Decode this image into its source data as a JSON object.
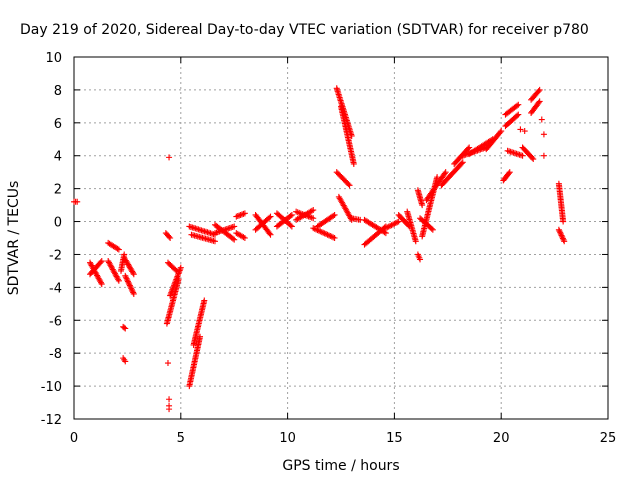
{
  "chart_data": {
    "type": "scatter",
    "title": "Day 219 of 2020, Sidereal Day-to-day VTEC variation (SDTVAR) for receiver p780",
    "xlabel": "GPS time / hours",
    "ylabel": "SDTVAR / TECUs",
    "xlim": [
      0,
      25
    ],
    "ylim": [
      -12,
      10
    ],
    "xticks": [
      0,
      5,
      10,
      15,
      20,
      25
    ],
    "yticks": [
      -12,
      -10,
      -8,
      -6,
      -4,
      -2,
      0,
      2,
      4,
      6,
      8,
      10
    ],
    "grid": true,
    "marker": "plus",
    "color": "#ff0000",
    "segments": [
      {
        "x": [
          0.0,
          0.15
        ],
        "y": [
          1.2,
          1.2
        ]
      },
      {
        "x": [
          0.75,
          1.3
        ],
        "y": [
          -2.5,
          -3.8
        ]
      },
      {
        "x": [
          0.75,
          1.3
        ],
        "y": [
          -3.2,
          -2.4
        ]
      },
      {
        "x": [
          1.6,
          2.1
        ],
        "y": [
          -1.3,
          -1.7
        ]
      },
      {
        "x": [
          1.6,
          2.1
        ],
        "y": [
          -2.4,
          -3.6
        ]
      },
      {
        "x": [
          2.2,
          2.35
        ],
        "y": [
          -3.0,
          -2.0
        ]
      },
      {
        "x": [
          2.35,
          2.8
        ],
        "y": [
          -2.2,
          -3.2
        ]
      },
      {
        "x": [
          2.4,
          2.8
        ],
        "y": [
          -3.3,
          -4.4
        ]
      },
      {
        "x": [
          2.3,
          2.4
        ],
        "y": [
          -6.4,
          -6.5
        ]
      },
      {
        "x": [
          2.3,
          2.4
        ],
        "y": [
          -8.3,
          -8.5
        ]
      },
      {
        "x": [
          4.3,
          4.5
        ],
        "y": [
          -0.7,
          -1.0
        ]
      },
      {
        "x": [
          4.35,
          4.9
        ],
        "y": [
          -6.2,
          -3.5
        ]
      },
      {
        "x": [
          4.5,
          5.0
        ],
        "y": [
          -4.5,
          -2.8
        ]
      },
      {
        "x": [
          4.4,
          4.8
        ],
        "y": [
          -2.5,
          -3.0
        ]
      },
      {
        "x": [
          5.4,
          5.9
        ],
        "y": [
          -10.0,
          -7.0
        ]
      },
      {
        "x": [
          5.6,
          6.1
        ],
        "y": [
          -7.5,
          -4.8
        ]
      },
      {
        "x": [
          5.4,
          6.6
        ],
        "y": [
          -0.3,
          -0.8
        ]
      },
      {
        "x": [
          5.5,
          6.6
        ],
        "y": [
          -0.8,
          -1.2
        ]
      },
      {
        "x": [
          6.6,
          7.5
        ],
        "y": [
          -0.2,
          -1.1
        ]
      },
      {
        "x": [
          6.6,
          7.5
        ],
        "y": [
          -0.7,
          -0.3
        ]
      },
      {
        "x": [
          7.6,
          8.0
        ],
        "y": [
          0.3,
          0.5
        ]
      },
      {
        "x": [
          7.6,
          8.0
        ],
        "y": [
          -0.7,
          -1.0
        ]
      },
      {
        "x": [
          8.5,
          9.2
        ],
        "y": [
          0.4,
          -0.8
        ]
      },
      {
        "x": [
          8.5,
          9.2
        ],
        "y": [
          -0.5,
          0.3
        ]
      },
      {
        "x": [
          9.5,
          10.2
        ],
        "y": [
          0.5,
          -0.3
        ]
      },
      {
        "x": [
          9.5,
          10.2
        ],
        "y": [
          -0.3,
          0.4
        ]
      },
      {
        "x": [
          10.4,
          11.2
        ],
        "y": [
          0.6,
          0.2
        ]
      },
      {
        "x": [
          10.4,
          11.2
        ],
        "y": [
          0.1,
          0.7
        ]
      },
      {
        "x": [
          11.2,
          12.2
        ],
        "y": [
          -0.4,
          -1.0
        ]
      },
      {
        "x": [
          11.4,
          12.2
        ],
        "y": [
          -0.3,
          0.4
        ]
      },
      {
        "x": [
          12.3,
          13.0
        ],
        "y": [
          8.1,
          5.2
        ]
      },
      {
        "x": [
          12.5,
          13.1
        ],
        "y": [
          7.0,
          3.5
        ]
      },
      {
        "x": [
          12.3,
          12.9
        ],
        "y": [
          3.0,
          2.2
        ]
      },
      {
        "x": [
          12.4,
          13.0
        ],
        "y": [
          1.5,
          0.1
        ]
      },
      {
        "x": [
          13.0,
          13.4
        ],
        "y": [
          0.2,
          0.1
        ]
      },
      {
        "x": [
          13.6,
          14.6
        ],
        "y": [
          -1.4,
          -0.3
        ]
      },
      {
        "x": [
          13.6,
          14.6
        ],
        "y": [
          0.1,
          -0.7
        ]
      },
      {
        "x": [
          14.6,
          15.2
        ],
        "y": [
          -0.4,
          0.0
        ]
      },
      {
        "x": [
          15.2,
          15.7
        ],
        "y": [
          0.4,
          -0.3
        ]
      },
      {
        "x": [
          15.6,
          16.0
        ],
        "y": [
          0.6,
          -1.2
        ]
      },
      {
        "x": [
          16.1,
          16.2
        ],
        "y": [
          -2.0,
          -2.3
        ]
      },
      {
        "x": [
          16.1,
          16.3
        ],
        "y": [
          1.9,
          1.0
        ]
      },
      {
        "x": [
          16.2,
          16.8
        ],
        "y": [
          0.2,
          -0.5
        ]
      },
      {
        "x": [
          16.3,
          17.0
        ],
        "y": [
          -0.9,
          2.7
        ]
      },
      {
        "x": [
          16.5,
          17.4
        ],
        "y": [
          1.3,
          3.0
        ]
      },
      {
        "x": [
          17.2,
          18.2
        ],
        "y": [
          2.2,
          3.6
        ]
      },
      {
        "x": [
          17.8,
          18.5
        ],
        "y": [
          3.5,
          4.5
        ]
      },
      {
        "x": [
          18.2,
          19.3
        ],
        "y": [
          4.0,
          4.5
        ]
      },
      {
        "x": [
          18.5,
          19.6
        ],
        "y": [
          4.1,
          5.0
        ]
      },
      {
        "x": [
          19.3,
          20.0
        ],
        "y": [
          4.4,
          5.5
        ]
      },
      {
        "x": [
          20.1,
          20.4
        ],
        "y": [
          2.5,
          3.0
        ]
      },
      {
        "x": [
          20.2,
          20.8
        ],
        "y": [
          6.5,
          7.1
        ]
      },
      {
        "x": [
          20.2,
          20.8
        ],
        "y": [
          5.8,
          6.5
        ]
      },
      {
        "x": [
          20.3,
          21.0
        ],
        "y": [
          4.3,
          4.0
        ]
      },
      {
        "x": [
          21.0,
          21.5
        ],
        "y": [
          4.5,
          3.8
        ]
      },
      {
        "x": [
          21.4,
          21.8
        ],
        "y": [
          7.4,
          8.0
        ]
      },
      {
        "x": [
          21.4,
          21.8
        ],
        "y": [
          6.6,
          7.3
        ]
      },
      {
        "x": [
          22.7,
          22.9
        ],
        "y": [
          2.3,
          0.0
        ]
      },
      {
        "x": [
          22.7,
          22.95
        ],
        "y": [
          -0.5,
          -1.2
        ]
      }
    ],
    "outliers": [
      {
        "x": 4.45,
        "y": 3.9
      },
      {
        "x": 4.4,
        "y": -8.6
      },
      {
        "x": 4.45,
        "y": -10.8
      },
      {
        "x": 4.45,
        "y": -11.2
      },
      {
        "x": 4.45,
        "y": -11.4
      },
      {
        "x": 21.1,
        "y": 5.5
      },
      {
        "x": 21.9,
        "y": 6.2
      },
      {
        "x": 22.0,
        "y": 5.3
      },
      {
        "x": 22.0,
        "y": 4.0
      },
      {
        "x": 20.9,
        "y": 5.6
      }
    ]
  }
}
